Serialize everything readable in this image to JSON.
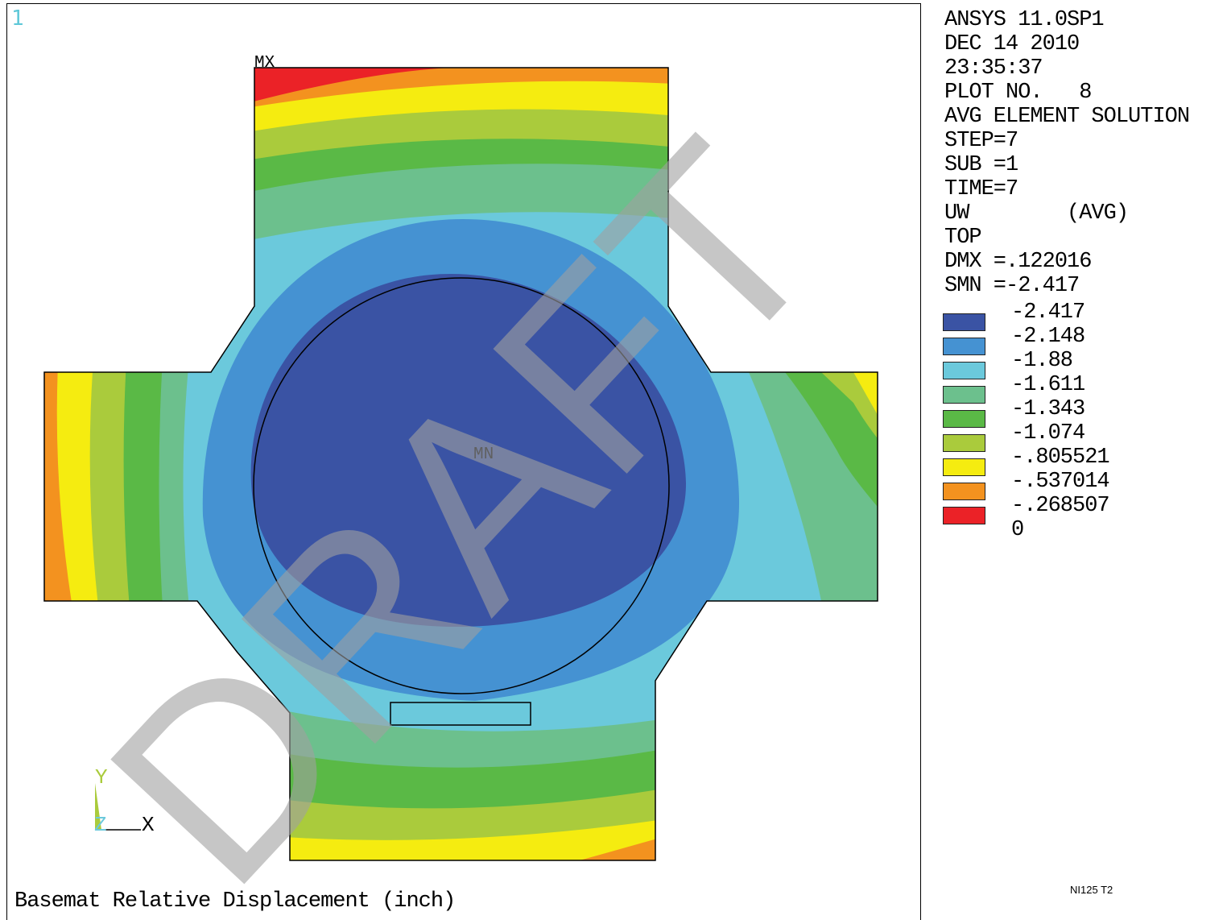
{
  "window_number": "1",
  "caption": "Basemat Relative Displacement (inch)",
  "watermark": "DRAFT",
  "markers": {
    "max": "MX",
    "min": "MN"
  },
  "axes": {
    "y": "Y",
    "z": "Z",
    "x": "X"
  },
  "info": {
    "program": "ANSYS 11.0SP1",
    "date": "DEC 14 2010",
    "time": "23:35:37",
    "plot_no": "PLOT NO.   8",
    "solution": "AVG ELEMENT SOLUTION",
    "step": "STEP=7",
    "sub": "SUB =1",
    "time_value": "TIME=7",
    "item": "UW        (AVG)",
    "layer": "TOP",
    "dmx": "DMX =.122016",
    "smn": "SMN =-2.417"
  },
  "legend": {
    "levels": [
      {
        "value": "-2.417",
        "color": "#3a53a4"
      },
      {
        "value": "-2.148",
        "color": "#4592d2"
      },
      {
        "value": "-1.88",
        "color": "#6bc9dc"
      },
      {
        "value": "-1.611",
        "color": "#6cc08d"
      },
      {
        "value": "-1.343",
        "color": "#5ab946"
      },
      {
        "value": "-1.074",
        "color": "#aacb3c"
      },
      {
        "value": "-.805521",
        "color": "#f5ec10"
      },
      {
        "value": "-.537014",
        "color": "#f3921f"
      },
      {
        "value": "-.268507",
        "color": "#eb2227"
      }
    ],
    "last_value": "0"
  },
  "doc_id": "NI125 T2"
}
